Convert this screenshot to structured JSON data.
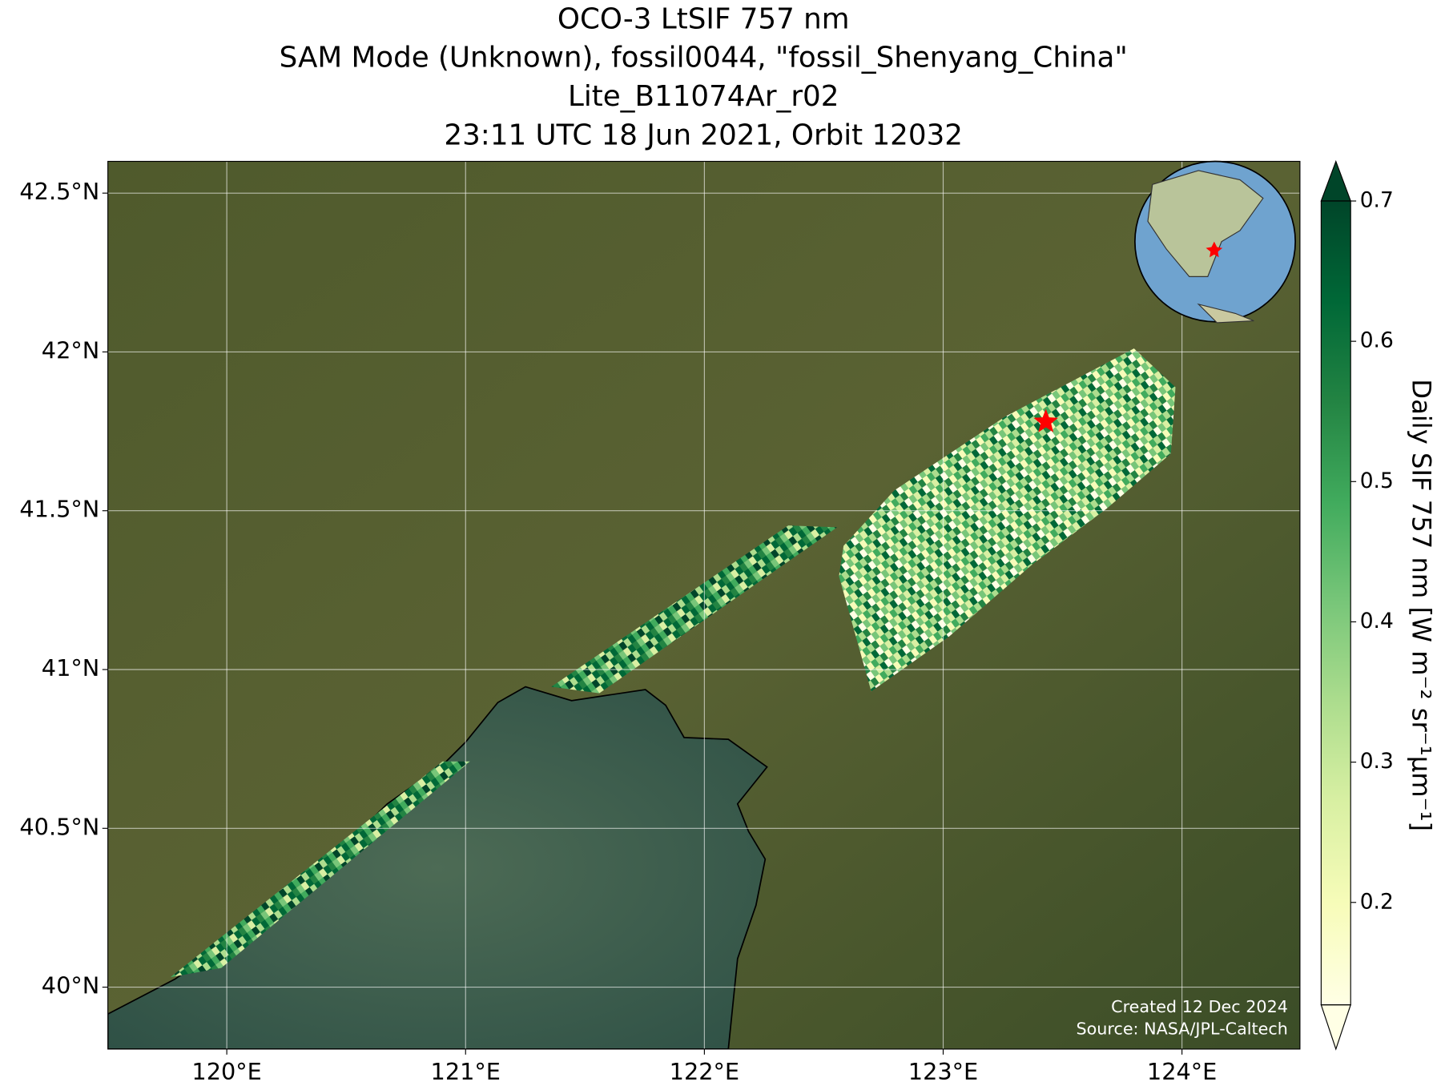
{
  "chart_data": {
    "type": "map",
    "title": [
      "OCO-3 LtSIF 757 nm",
      "SAM Mode (Unknown), fossil0044, \"fossil_Shenyang_China\"",
      "Lite_B11074Ar_r02",
      "23:11 UTC 18 Jun 2021, Orbit 12032"
    ],
    "xlim": [
      119.502,
      124.494
    ],
    "ylim": [
      39.805,
      42.6
    ],
    "xticks": [
      {
        "value": 120,
        "label": "120°E"
      },
      {
        "value": 121,
        "label": "121°E"
      },
      {
        "value": 122,
        "label": "122°E"
      },
      {
        "value": 123,
        "label": "123°E"
      },
      {
        "value": 124,
        "label": "124°E"
      }
    ],
    "yticks": [
      {
        "value": 40,
        "label": "40°N"
      },
      {
        "value": 40.5,
        "label": "40.5°N"
      },
      {
        "value": 41,
        "label": "41°N"
      },
      {
        "value": 41.5,
        "label": "41.5°N"
      },
      {
        "value": 42,
        "label": "42°N"
      },
      {
        "value": 42.5,
        "label": "42.5°N"
      }
    ],
    "grid": true,
    "target": {
      "lon": 123.43,
      "lat": 41.78,
      "color": "#ff0000"
    },
    "colorbar": {
      "label": "Daily SIF 757 nm [W m⁻² sr⁻¹μm⁻¹]",
      "lim": [
        0.127,
        0.7
      ],
      "ticks": [
        0.2,
        0.3,
        0.4,
        0.5,
        0.6,
        0.7
      ],
      "colors": [
        "#ffffe5",
        "#f7fcb9",
        "#d9f0a3",
        "#addd8e",
        "#78c679",
        "#41ab5d",
        "#238443",
        "#006837",
        "#004529"
      ]
    },
    "credits": [
      "Created 12 Dec 2024",
      "Source: NASA/JPL-Caltech"
    ]
  }
}
